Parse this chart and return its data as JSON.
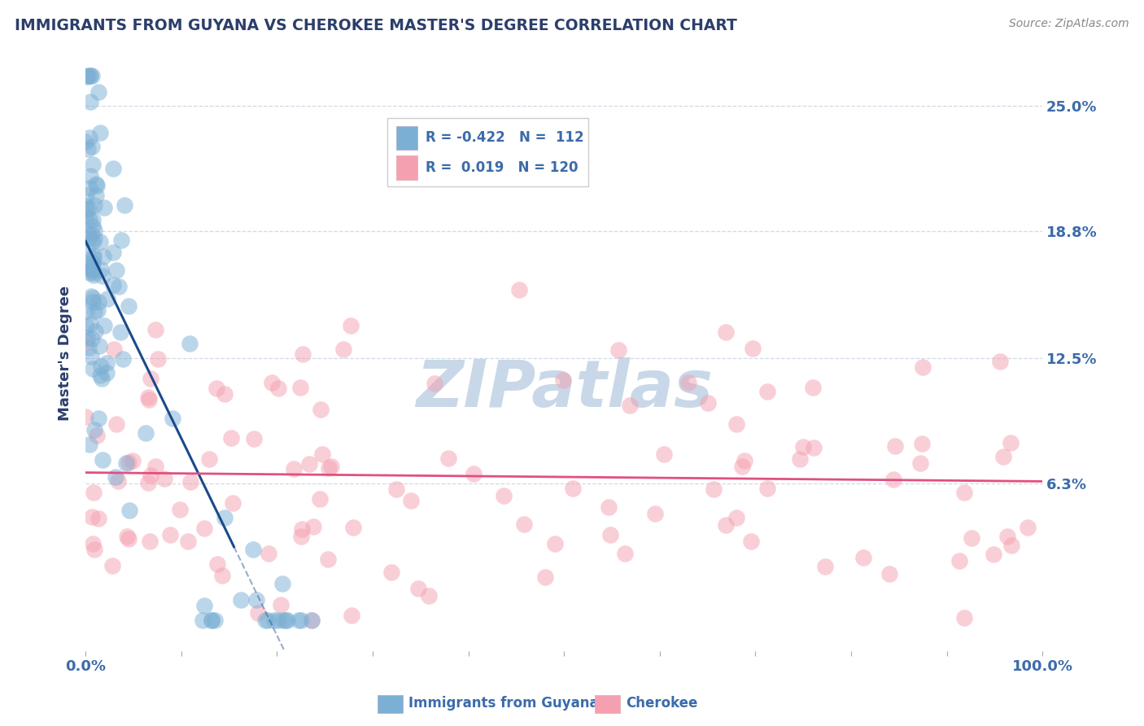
{
  "title": "IMMIGRANTS FROM GUYANA VS CHEROKEE MASTER'S DEGREE CORRELATION CHART",
  "source_text": "Source: ZipAtlas.com",
  "ylabel": "Master's Degree",
  "xlim": [
    0.0,
    1.0
  ],
  "ylim": [
    -0.02,
    0.275
  ],
  "x_ticks": [
    0.0,
    0.1,
    0.2,
    0.3,
    0.4,
    0.5,
    0.6,
    0.7,
    0.8,
    0.9,
    1.0
  ],
  "x_tick_labels": [
    "0.0%",
    "",
    "",
    "",
    "",
    "",
    "",
    "",
    "",
    "",
    "100.0%"
  ],
  "y_tick_labels_right": [
    "6.3%",
    "12.5%",
    "18.8%",
    "25.0%"
  ],
  "y_ticks": [
    0.063,
    0.125,
    0.188,
    0.25
  ],
  "blue_color": "#7BAFD4",
  "pink_color": "#F4A0B0",
  "trend_blue": "#1A4A8A",
  "trend_pink": "#E05080",
  "background_color": "#FFFFFF",
  "watermark": "ZIPatlas",
  "watermark_color": "#C8D8E8",
  "title_color": "#2C3E6B",
  "axis_label_color": "#2C3E6B",
  "tick_color": "#3B6BAA",
  "legend_text_color": "#3B6BAA",
  "grid_color": "#B0C4D8",
  "legend_blue_text": "R = -0.422   N =  112",
  "legend_pink_text": "R =  0.019   N = 120",
  "bottom_legend_blue": "Immigrants from Guyana",
  "bottom_legend_pink": "Cherokee"
}
